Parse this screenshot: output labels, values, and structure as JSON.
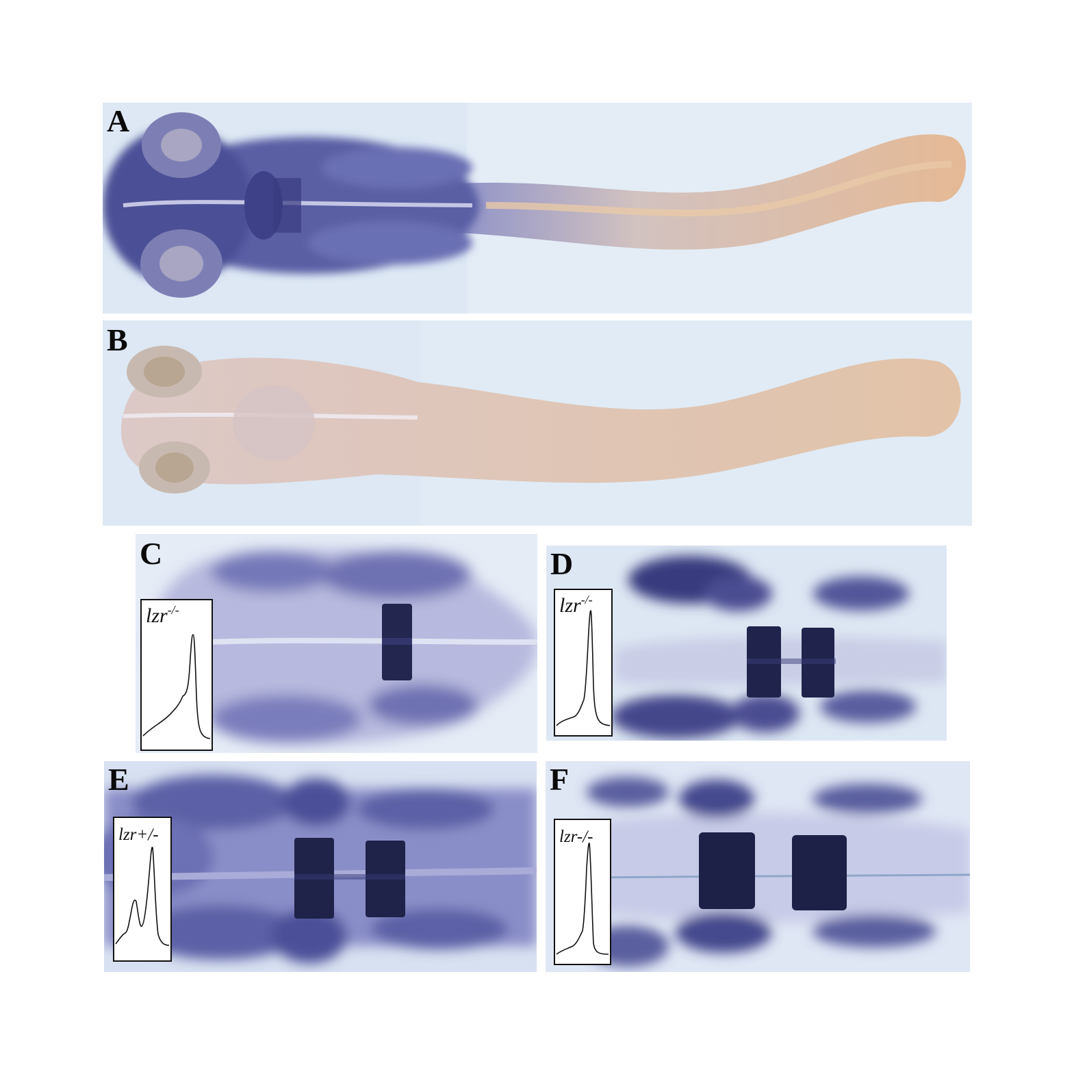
{
  "figure": {
    "panels": [
      {
        "id": "A",
        "label": "A"
      },
      {
        "id": "B",
        "label": "B"
      },
      {
        "id": "C",
        "label": "C",
        "inset": {
          "genotype": "lzr",
          "superscript": "-/-"
        }
      },
      {
        "id": "D",
        "label": "D",
        "inset": {
          "genotype": "lzr",
          "superscript": "-/-"
        }
      },
      {
        "id": "E",
        "label": "E",
        "inset": {
          "genotype": "lzr+/-",
          "superscript": ""
        }
      },
      {
        "id": "F",
        "label": "F",
        "inset": {
          "genotype": "lzr-/-",
          "superscript": ""
        }
      }
    ],
    "colors": {
      "background": "#ffffff",
      "field": "#dde8f4",
      "stain": "#2b2d6e",
      "stain_light": "#6f74b4",
      "tissue": "#d9c7b8",
      "yolk": "#d8b89a"
    },
    "icons": [
      "histogram-trace"
    ]
  }
}
